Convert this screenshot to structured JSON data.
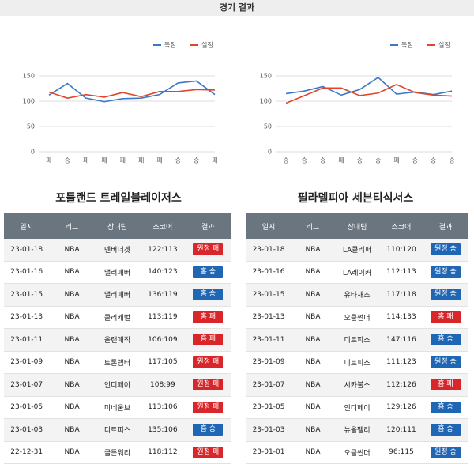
{
  "header": "경기 결과",
  "chart_data": [
    {
      "type": "line",
      "categories": [
        "패",
        "승",
        "패",
        "패",
        "패",
        "패",
        "패",
        "승",
        "승",
        "패"
      ],
      "series": [
        {
          "name": "득점",
          "color": "#3a78c8",
          "values": [
            112,
            135,
            106,
            99,
            105,
            106,
            113,
            136,
            140,
            113
          ]
        },
        {
          "name": "실점",
          "color": "#e0452b",
          "values": [
            118,
            106,
            113,
            108,
            117,
            109,
            119,
            119,
            123,
            122
          ]
        }
      ],
      "ylim": [
        0,
        150
      ],
      "yticks": [
        0,
        50,
        100,
        150
      ],
      "grid": true,
      "legend": "top-right"
    },
    {
      "type": "line",
      "categories": [
        "승",
        "승",
        "승",
        "패",
        "승",
        "승",
        "패",
        "승",
        "승",
        "승"
      ],
      "series": [
        {
          "name": "득점",
          "color": "#3a78c8",
          "values": [
            115,
            120,
            129,
            112,
            123,
            147,
            114,
            118,
            113,
            120
          ]
        },
        {
          "name": "실점",
          "color": "#e0452b",
          "values": [
            96,
            111,
            126,
            126,
            111,
            116,
            133,
            117,
            112,
            110
          ]
        }
      ],
      "ylim": [
        0,
        150
      ],
      "yticks": [
        0,
        50,
        100,
        150
      ],
      "grid": true,
      "legend": "top-right"
    }
  ],
  "tables": [
    {
      "title": "포틀랜드 트레일블레이저스",
      "columns": [
        "일시",
        "리그",
        "상대팀",
        "스코어",
        "결과"
      ],
      "rows": [
        [
          "23-01-18",
          "NBA",
          "덴버너겟",
          "122:113",
          "원정 패"
        ],
        [
          "23-01-16",
          "NBA",
          "댈러매버",
          "140:123",
          "홈 승"
        ],
        [
          "23-01-15",
          "NBA",
          "댈러매버",
          "136:119",
          "홈 승"
        ],
        [
          "23-01-13",
          "NBA",
          "클리캐벌",
          "113:119",
          "홈 패"
        ],
        [
          "23-01-11",
          "NBA",
          "올랜매직",
          "106:109",
          "홈 패"
        ],
        [
          "23-01-09",
          "NBA",
          "토론랩터",
          "117:105",
          "원정 패"
        ],
        [
          "23-01-07",
          "NBA",
          "인디페이",
          "108:99",
          "원정 패"
        ],
        [
          "23-01-05",
          "NBA",
          "미네울브",
          "113:106",
          "원정 패"
        ],
        [
          "23-01-03",
          "NBA",
          "디트피스",
          "135:106",
          "홈 승"
        ],
        [
          "22-12-31",
          "NBA",
          "골든워리",
          "118:112",
          "원정 패"
        ]
      ]
    },
    {
      "title": "필라델피아 세븐티식서스",
      "columns": [
        "일시",
        "리그",
        "상대팀",
        "스코어",
        "결과"
      ],
      "rows": [
        [
          "23-01-18",
          "NBA",
          "LA클리퍼",
          "110:120",
          "원정 승"
        ],
        [
          "23-01-16",
          "NBA",
          "LA레이커",
          "112:113",
          "원정 승"
        ],
        [
          "23-01-15",
          "NBA",
          "유타재즈",
          "117:118",
          "원정 승"
        ],
        [
          "23-01-13",
          "NBA",
          "오클썬더",
          "114:133",
          "홈 패"
        ],
        [
          "23-01-11",
          "NBA",
          "디트피스",
          "147:116",
          "홈 승"
        ],
        [
          "23-01-09",
          "NBA",
          "디트피스",
          "111:123",
          "원정 승"
        ],
        [
          "23-01-07",
          "NBA",
          "시카불스",
          "112:126",
          "홈 패"
        ],
        [
          "23-01-05",
          "NBA",
          "인디페이",
          "129:126",
          "홈 승"
        ],
        [
          "23-01-03",
          "NBA",
          "뉴올펠리",
          "120:111",
          "홈 승"
        ],
        [
          "23-01-01",
          "NBA",
          "오클썬더",
          "96:115",
          "원정 승"
        ]
      ]
    }
  ]
}
